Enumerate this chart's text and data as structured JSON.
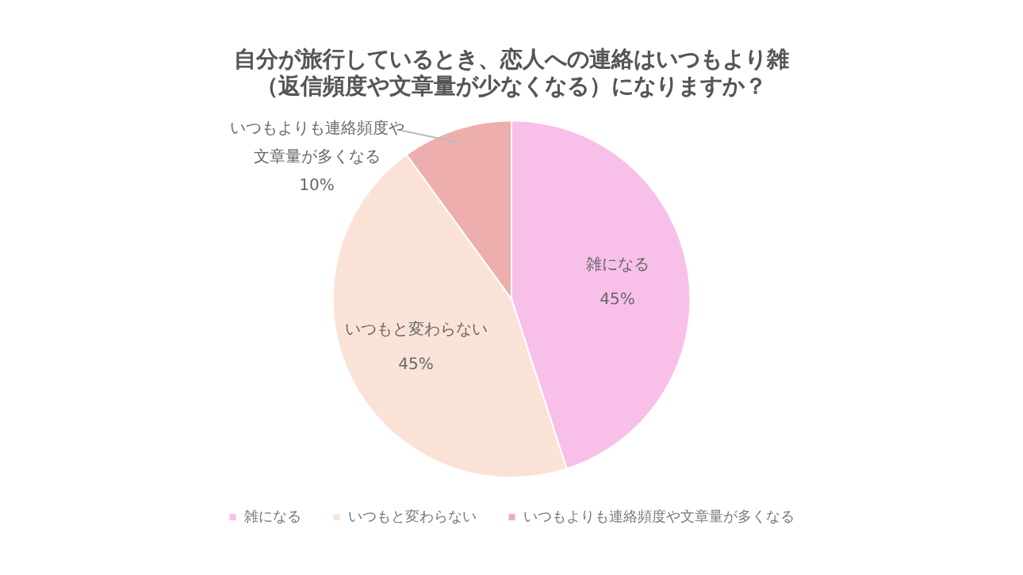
{
  "chart_data": {
    "type": "pie",
    "title": "自分が旅行しているとき、恋人への連絡はいつもより雑（返信頻度や文章量が少なくなる）になりますか？",
    "categories": [
      "雑になる",
      "いつもと変わらない",
      "いつもよりも連絡頻度や文章量が多くなる"
    ],
    "values": [
      45,
      45,
      10
    ],
    "colors": [
      "#f8c0e9",
      "#fae3d6",
      "#efaeae"
    ],
    "value_labels": [
      "45%",
      "45%",
      "10%"
    ],
    "legend": "bottom"
  }
}
